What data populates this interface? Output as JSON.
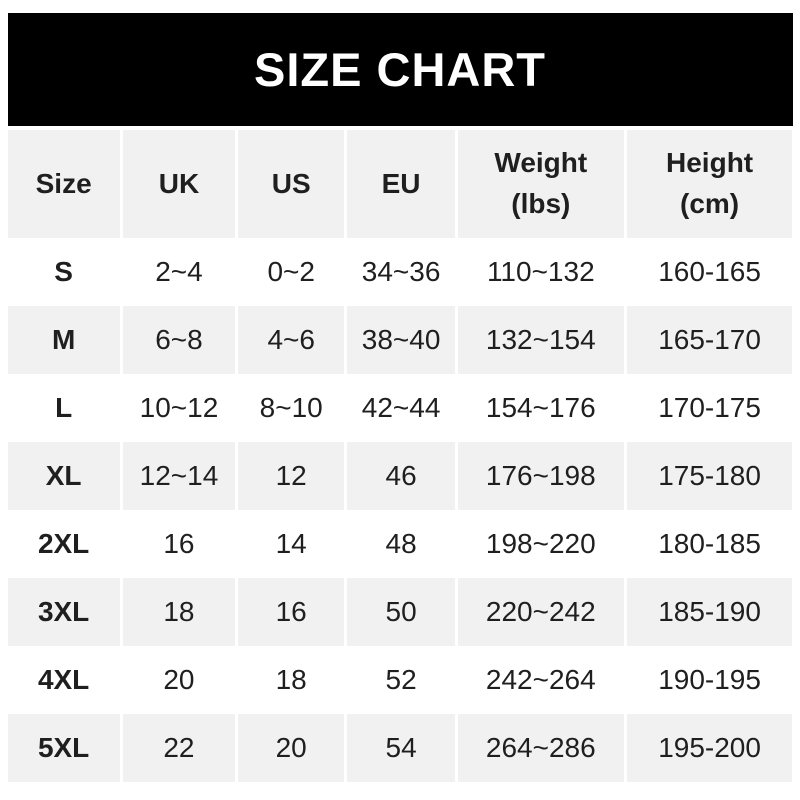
{
  "banner": {
    "title": "SIZE CHART"
  },
  "theme": {
    "banner_bg": "#000000",
    "banner_text": "#ffffff",
    "alt_row_bg": "#f1f1f1",
    "row_bg": "#ffffff",
    "text_color": "#1f1f1f"
  },
  "table": {
    "columns": [
      {
        "line1": "Size",
        "line2": ""
      },
      {
        "line1": "UK",
        "line2": ""
      },
      {
        "line1": "US",
        "line2": ""
      },
      {
        "line1": "EU",
        "line2": ""
      },
      {
        "line1": "Weight",
        "line2": "(lbs)"
      },
      {
        "line1": "Height",
        "line2": "(cm)"
      }
    ],
    "rows": [
      {
        "size": "S",
        "uk": "2~4",
        "us": "0~2",
        "eu": "34~36",
        "weight": "110~132",
        "height": "160-165"
      },
      {
        "size": "M",
        "uk": "6~8",
        "us": "4~6",
        "eu": "38~40",
        "weight": "132~154",
        "height": "165-170"
      },
      {
        "size": "L",
        "uk": "10~12",
        "us": "8~10",
        "eu": "42~44",
        "weight": "154~176",
        "height": "170-175"
      },
      {
        "size": "XL",
        "uk": "12~14",
        "us": "12",
        "eu": "46",
        "weight": "176~198",
        "height": "175-180"
      },
      {
        "size": "2XL",
        "uk": "16",
        "us": "14",
        "eu": "48",
        "weight": "198~220",
        "height": "180-185"
      },
      {
        "size": "3XL",
        "uk": "18",
        "us": "16",
        "eu": "50",
        "weight": "220~242",
        "height": "185-190"
      },
      {
        "size": "4XL",
        "uk": "20",
        "us": "18",
        "eu": "52",
        "weight": "242~264",
        "height": "190-195"
      },
      {
        "size": "5XL",
        "uk": "22",
        "us": "20",
        "eu": "54",
        "weight": "264~286",
        "height": "195-200"
      }
    ]
  }
}
